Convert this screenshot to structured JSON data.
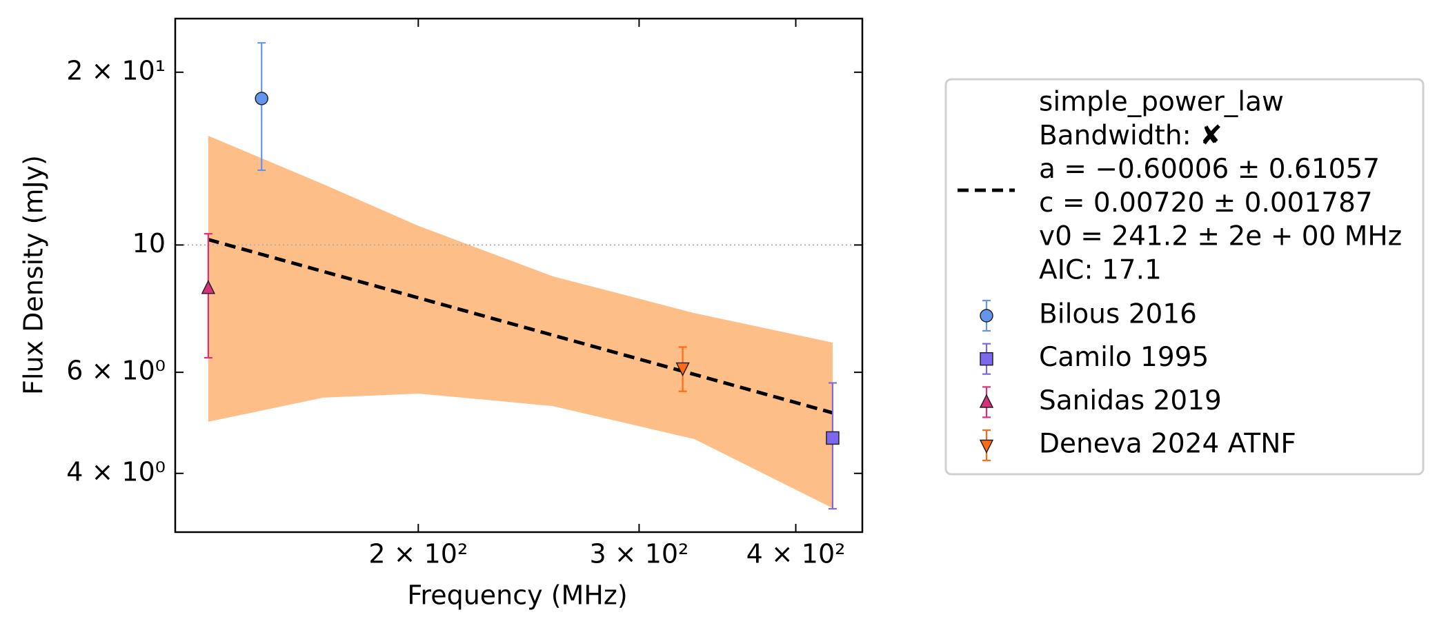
{
  "chart_data": {
    "type": "scatter",
    "x_label": "Frequency (MHz)",
    "y_label": "Flux Density (mJy)",
    "log_x": true,
    "log_y": true,
    "xlim": [
      128,
      452
    ],
    "ylim": [
      3.16,
      24.8
    ],
    "xticks": [
      {
        "value": 200,
        "label": "2 × 10²"
      },
      {
        "value": 300,
        "label": "3 × 10²"
      },
      {
        "value": 400,
        "label": "4 × 10²"
      }
    ],
    "yticks": [
      {
        "value": 4,
        "label": "4 × 10⁰"
      },
      {
        "value": 6,
        "label": "6 × 10⁰"
      },
      {
        "value": 10,
        "label": "10"
      },
      {
        "value": 20,
        "label": "2 × 10¹"
      }
    ],
    "hline": 10,
    "fit": {
      "name": "simple_power_law",
      "details": [
        "Bandwidth: ✘",
        "a = −0.60006 ± 0.61057",
        "c = 0.00720 ± 0.001787",
        "v0 = 241.2 ± 2e + 00 MHz",
        "AIC: 17.1"
      ],
      "color": "#000000",
      "x": [
        136,
        428
      ],
      "values": [
        10.22,
        5.1
      ],
      "band_color": "#fdbe87",
      "band_x": [
        136,
        168,
        200,
        256,
        332,
        428
      ],
      "band_upper": [
        15.5,
        12.76,
        10.8,
        8.82,
        7.61,
        6.76
      ],
      "band_lower": [
        4.92,
        5.42,
        5.51,
        5.24,
        4.59,
        3.48
      ]
    },
    "series": [
      {
        "name": "Bilous 2016",
        "color": "#6495ed",
        "marker": "o",
        "x": [
          150
        ],
        "values": [
          18.0
        ],
        "yerr": [
          4.5
        ]
      },
      {
        "name": "Camilo 1995",
        "color": "#7b68ee",
        "marker": "s",
        "x": [
          428
        ],
        "values": [
          4.61
        ],
        "yerr": [
          1.14
        ]
      },
      {
        "name": "Sanidas 2019",
        "color": "#d6317c",
        "marker": "^",
        "x": [
          136
        ],
        "values": [
          8.41
        ],
        "yerr": [
          2.05
        ]
      },
      {
        "name": "Deneva 2024 ATNF",
        "color": "#ff6a13",
        "marker": "v",
        "x": [
          325
        ],
        "values": [
          6.1
        ],
        "yerr": [
          0.54
        ]
      }
    ]
  }
}
